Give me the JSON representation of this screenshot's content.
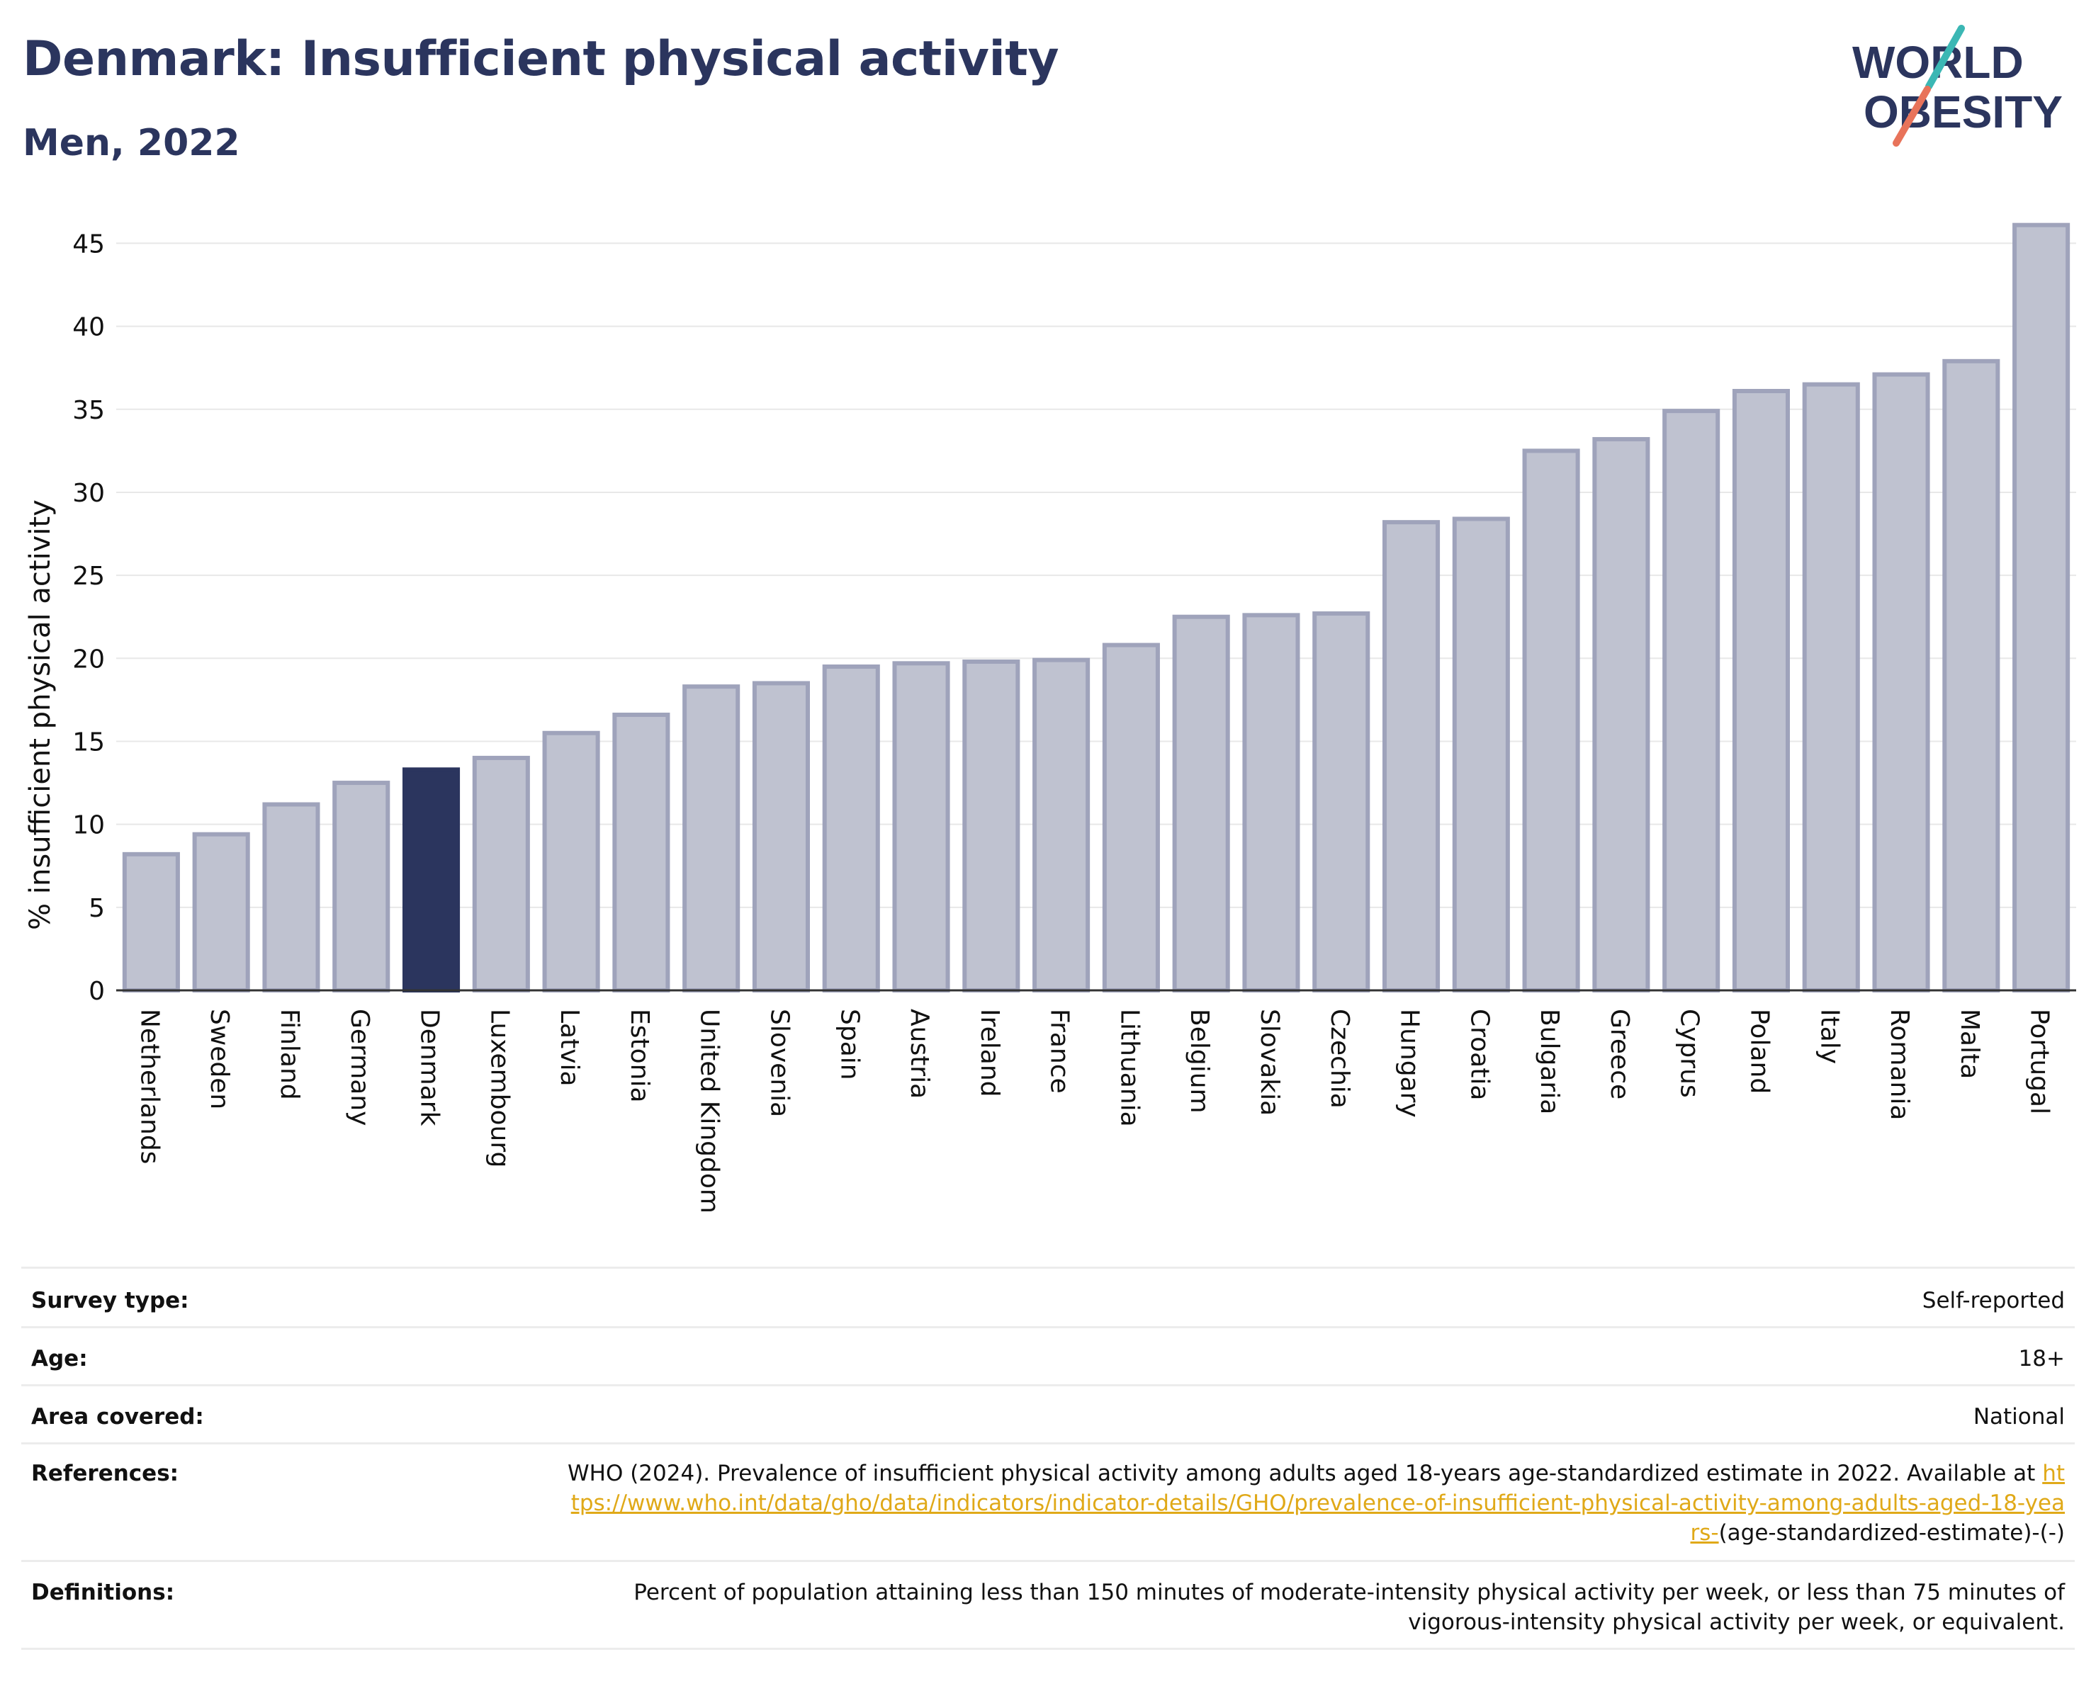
{
  "header": {
    "title": "Denmark: Insufficient physical activity",
    "subtitle": "Men, 2022"
  },
  "logo": {
    "line1": "WORLD",
    "line2": "OBESITY",
    "colors": {
      "text": "#2b355e",
      "slash_teal": "#3bb7b4",
      "slash_coral": "#e8735a"
    }
  },
  "chart_data": {
    "type": "bar",
    "ylabel": "% insufficient physical activity",
    "xlabel": "",
    "ylim": [
      0,
      46
    ],
    "yticks": [
      0,
      5,
      10,
      15,
      20,
      25,
      30,
      35,
      40,
      45
    ],
    "grid": true,
    "highlight": "Denmark",
    "colors": {
      "bar": "#bfc2d0",
      "bar_edge": "#9fa3bb",
      "highlight": "#2b355e",
      "grid": "#e8e8e8",
      "axis": "#333333"
    },
    "categories": [
      "Netherlands",
      "Sweden",
      "Finland",
      "Germany",
      "Denmark",
      "Luxembourg",
      "Latvia",
      "Estonia",
      "United Kingdom",
      "Slovenia",
      "Spain",
      "Austria",
      "Ireland",
      "France",
      "Lithuania",
      "Belgium",
      "Slovakia",
      "Czechia",
      "Hungary",
      "Croatia",
      "Bulgaria",
      "Greece",
      "Cyprus",
      "Poland",
      "Italy",
      "Romania",
      "Malta",
      "Portugal"
    ],
    "values": [
      8.2,
      9.4,
      11.2,
      12.5,
      13.3,
      14.0,
      15.5,
      16.6,
      18.3,
      18.5,
      19.5,
      19.7,
      19.8,
      19.9,
      20.8,
      22.5,
      22.6,
      22.7,
      28.2,
      28.4,
      32.5,
      33.2,
      34.9,
      36.1,
      36.5,
      37.1,
      37.9,
      46.1
    ]
  },
  "info": {
    "survey_type_label": "Survey type:",
    "survey_type_value": "Self-reported",
    "age_label": "Age:",
    "age_value": "18+",
    "area_label": "Area covered:",
    "area_value": "National",
    "references_label": "References:",
    "references_text": "WHO (2024). Prevalence of insufficient physical activity among adults aged 18-years age-standardized estimate in 2022. Available at ",
    "references_link": "https://www.who.int/data/gho/data/indicators/indicator-details/GHO/prevalence-of-insufficient-physical-activity-among-adults-aged-18-years-",
    "references_suffix": "(age-standardized-estimate)-(-)",
    "definitions_label": "Definitions:",
    "definitions_text": "Percent of population attaining less than 150 minutes of moderate-intensity physical activity per week, or less than 75 minutes of vigorous-intensity physical activity per week, or equivalent."
  }
}
